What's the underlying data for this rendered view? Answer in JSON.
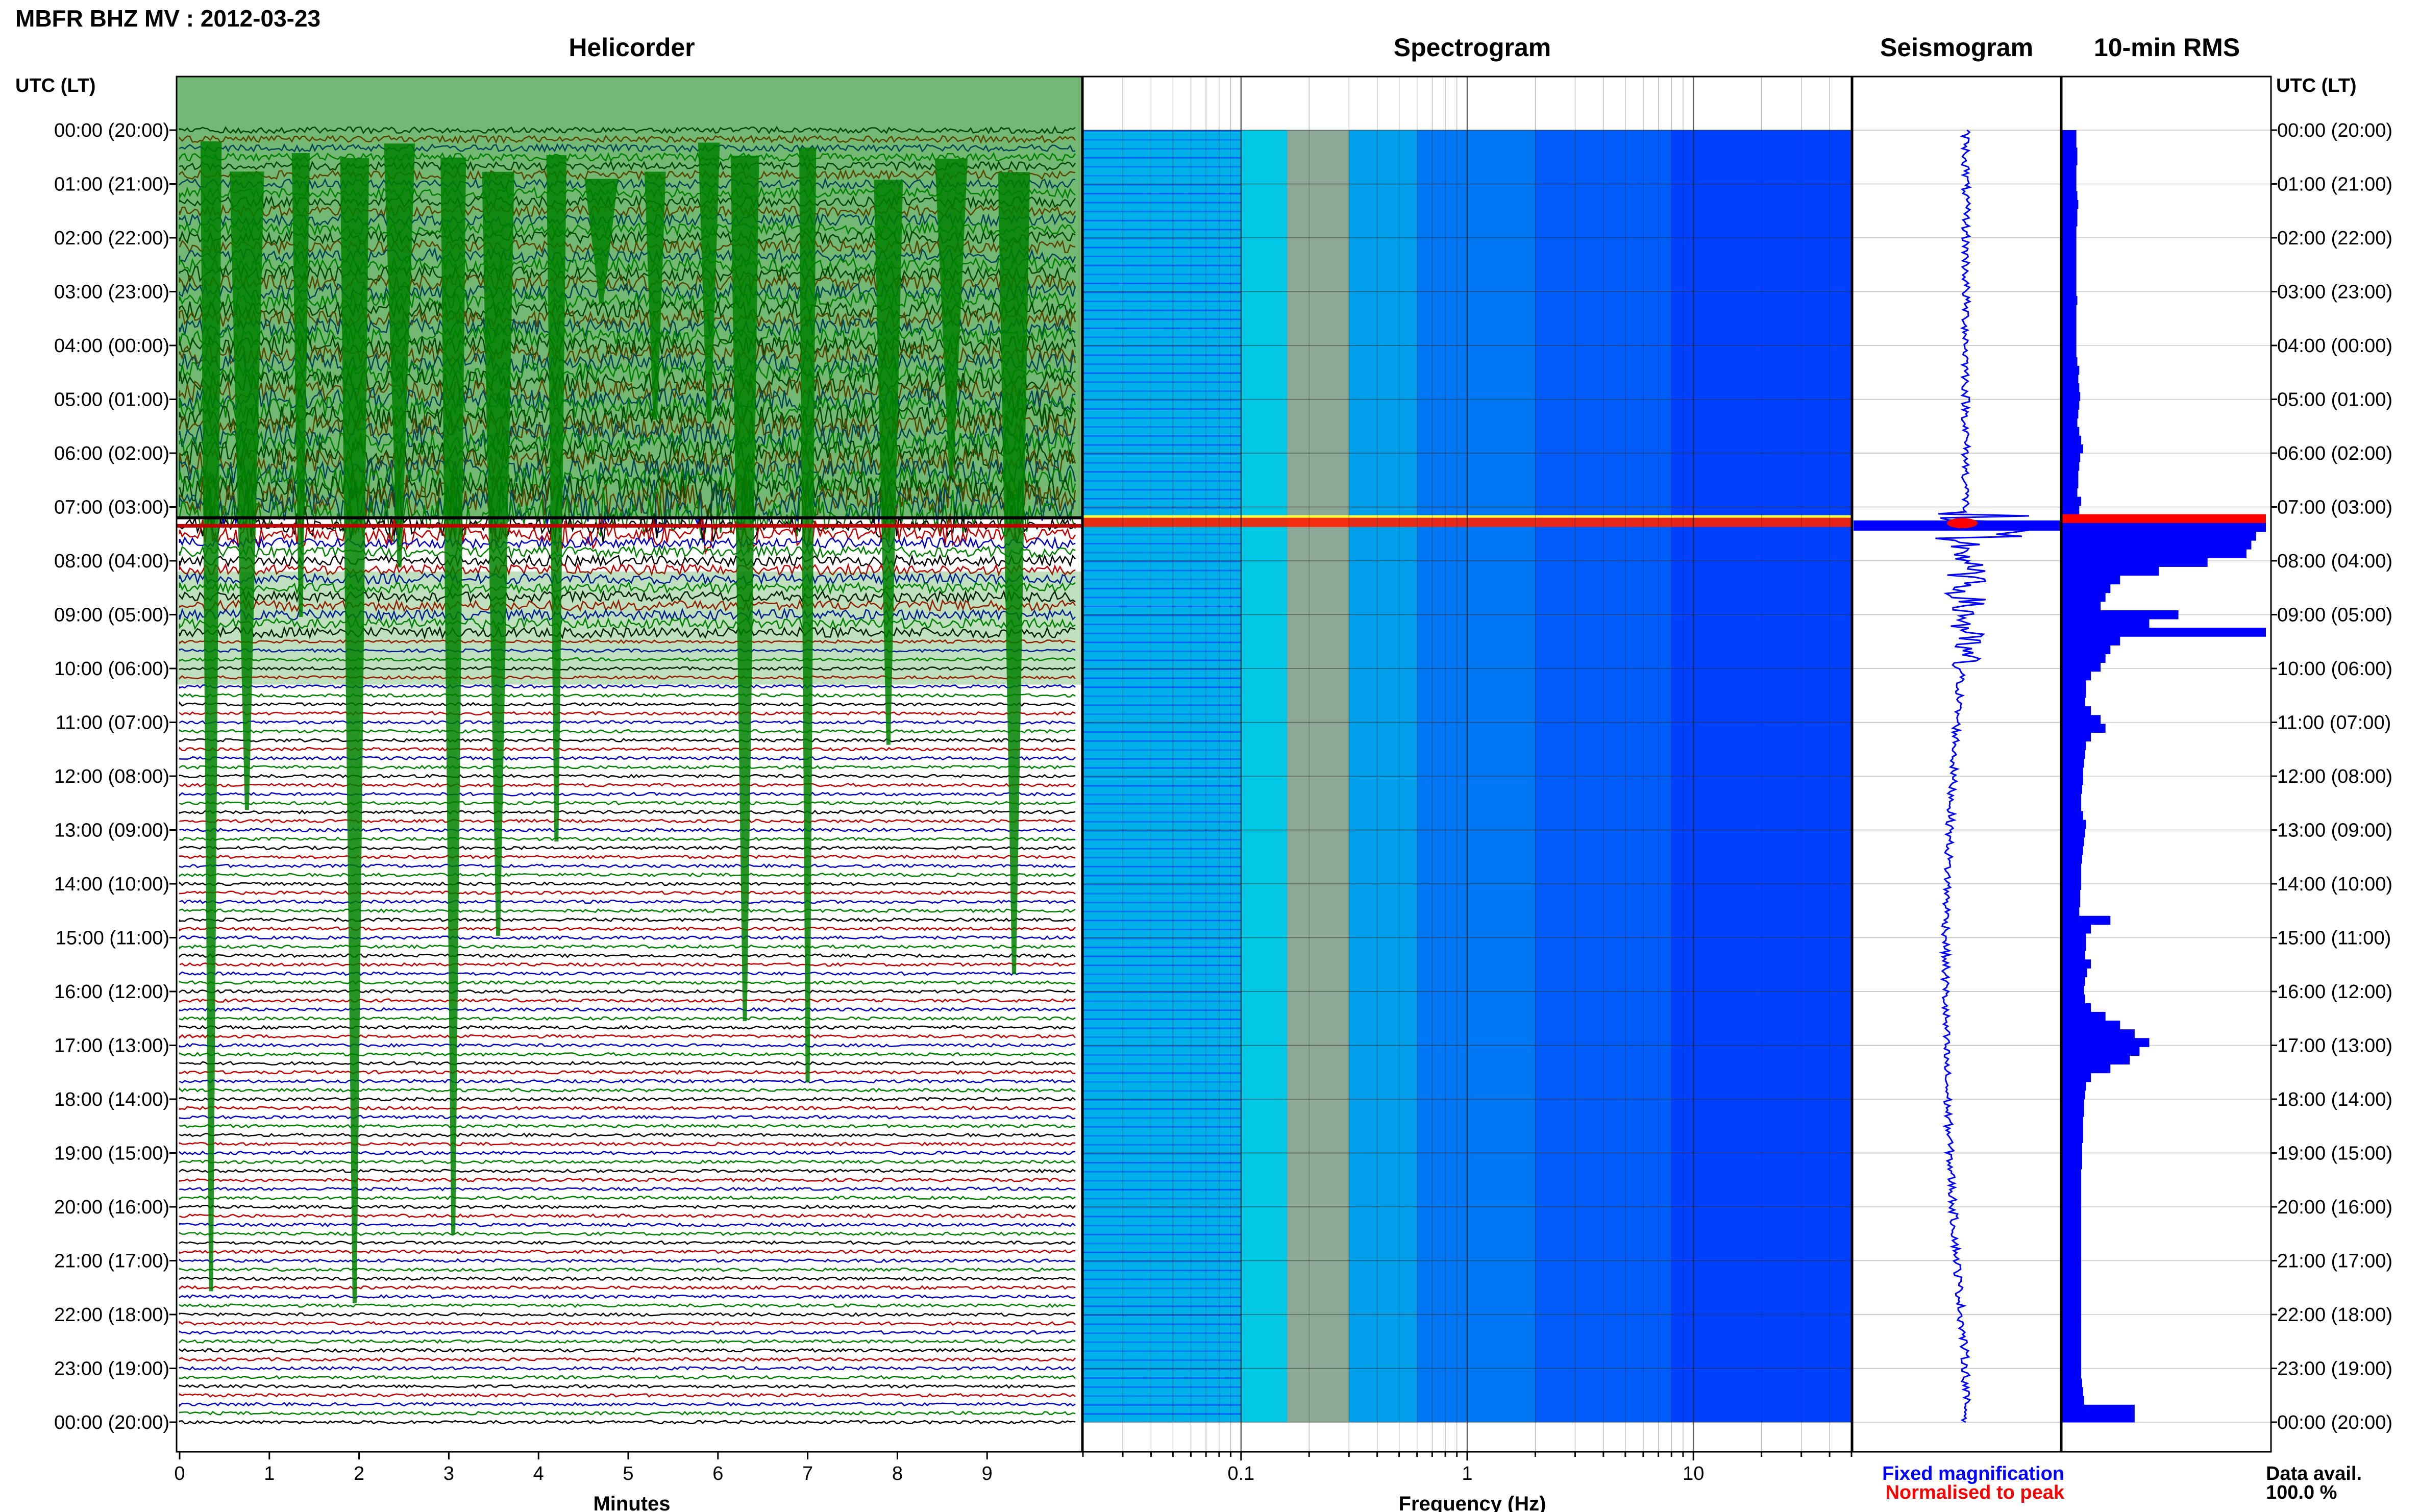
{
  "header": {
    "title": "MBFR BHZ MV : 2012-03-23"
  },
  "chart_data": [
    {
      "type": "line",
      "title": "Helicorder",
      "xlabel": "Minutes",
      "y_axis_label": "UTC (LT)",
      "xlim": [
        0,
        10
      ],
      "x_ticks": [
        "0",
        "1",
        "2",
        "3",
        "4",
        "5",
        "6",
        "7",
        "8",
        "9"
      ],
      "y_ticks": [
        "00:00 (20:00)",
        "01:00 (21:00)",
        "02:00 (22:00)",
        "03:00 (23:00)",
        "04:00 (00:00)",
        "05:00 (01:00)",
        "06:00 (02:00)",
        "07:00 (03:00)",
        "08:00 (04:00)",
        "09:00 (05:00)",
        "10:00 (06:00)",
        "11:00 (07:00)",
        "12:00 (08:00)",
        "13:00 (09:00)",
        "14:00 (10:00)",
        "15:00 (11:00)",
        "16:00 (12:00)",
        "17:00 (13:00)",
        "18:00 (14:00)",
        "19:00 (15:00)",
        "20:00 (16:00)",
        "21:00 (17:00)",
        "22:00 (18:00)",
        "23:00 (19:00)",
        "00:00 (20:00)"
      ],
      "trace_colors": [
        "#000000",
        "#c00000",
        "#0000c0",
        "#008000"
      ],
      "traces_per_hour": 6
    },
    {
      "type": "heatmap",
      "title": "Spectrogram",
      "xlabel": "Frequency (Hz)",
      "x_scale": "log",
      "xlim": [
        0.02,
        50
      ],
      "x_ticks": [
        "0.1",
        "1",
        "10"
      ],
      "colormap": [
        "#00e0e0",
        "#ffff40",
        "#ff2000",
        "#0040ff"
      ]
    },
    {
      "type": "line",
      "title": "Seismogram",
      "trace_color": "#0000ff",
      "peak_color": "#ff0000"
    },
    {
      "type": "bar",
      "title": "10-min RMS",
      "bar_color": "#0000ff",
      "peak_color": "#ff0000",
      "y_axis_label": "UTC (LT)",
      "values": [
        30,
        30,
        32,
        32,
        30,
        30,
        30,
        32,
        34,
        32,
        32,
        30,
        30,
        30,
        30,
        30,
        30,
        30,
        30,
        32,
        30,
        30,
        30,
        30,
        30,
        30,
        32,
        36,
        34,
        36,
        38,
        36,
        34,
        32,
        36,
        40,
        44,
        38,
        36,
        34,
        34,
        32,
        40,
        36,
        420,
        420,
        400,
        390,
        380,
        300,
        200,
        120,
        100,
        90,
        80,
        240,
        180,
        420,
        120,
        100,
        90,
        80,
        60,
        50,
        50,
        48,
        60,
        80,
        90,
        60,
        50,
        48,
        46,
        44,
        44,
        42,
        40,
        40,
        44,
        50,
        48,
        46,
        44,
        42,
        40,
        40,
        40,
        38,
        38,
        36,
        100,
        60,
        50,
        50,
        48,
        60,
        52,
        48,
        46,
        48,
        60,
        90,
        120,
        150,
        180,
        160,
        140,
        100,
        60,
        50,
        48,
        46,
        46,
        44,
        44,
        44,
        42,
        42,
        42,
        40,
        40,
        40,
        40,
        40,
        40,
        40,
        40,
        40,
        40,
        40,
        40,
        40,
        40,
        40,
        40,
        40,
        40,
        40,
        40,
        40,
        40,
        40,
        40,
        42,
        44,
        46,
        150,
        150
      ]
    }
  ],
  "legend": {
    "fixed": "Fixed magnification",
    "normalised": "Normalised to peak",
    "data_avail_label": "Data avail.",
    "data_avail_value": "100.0 %"
  }
}
